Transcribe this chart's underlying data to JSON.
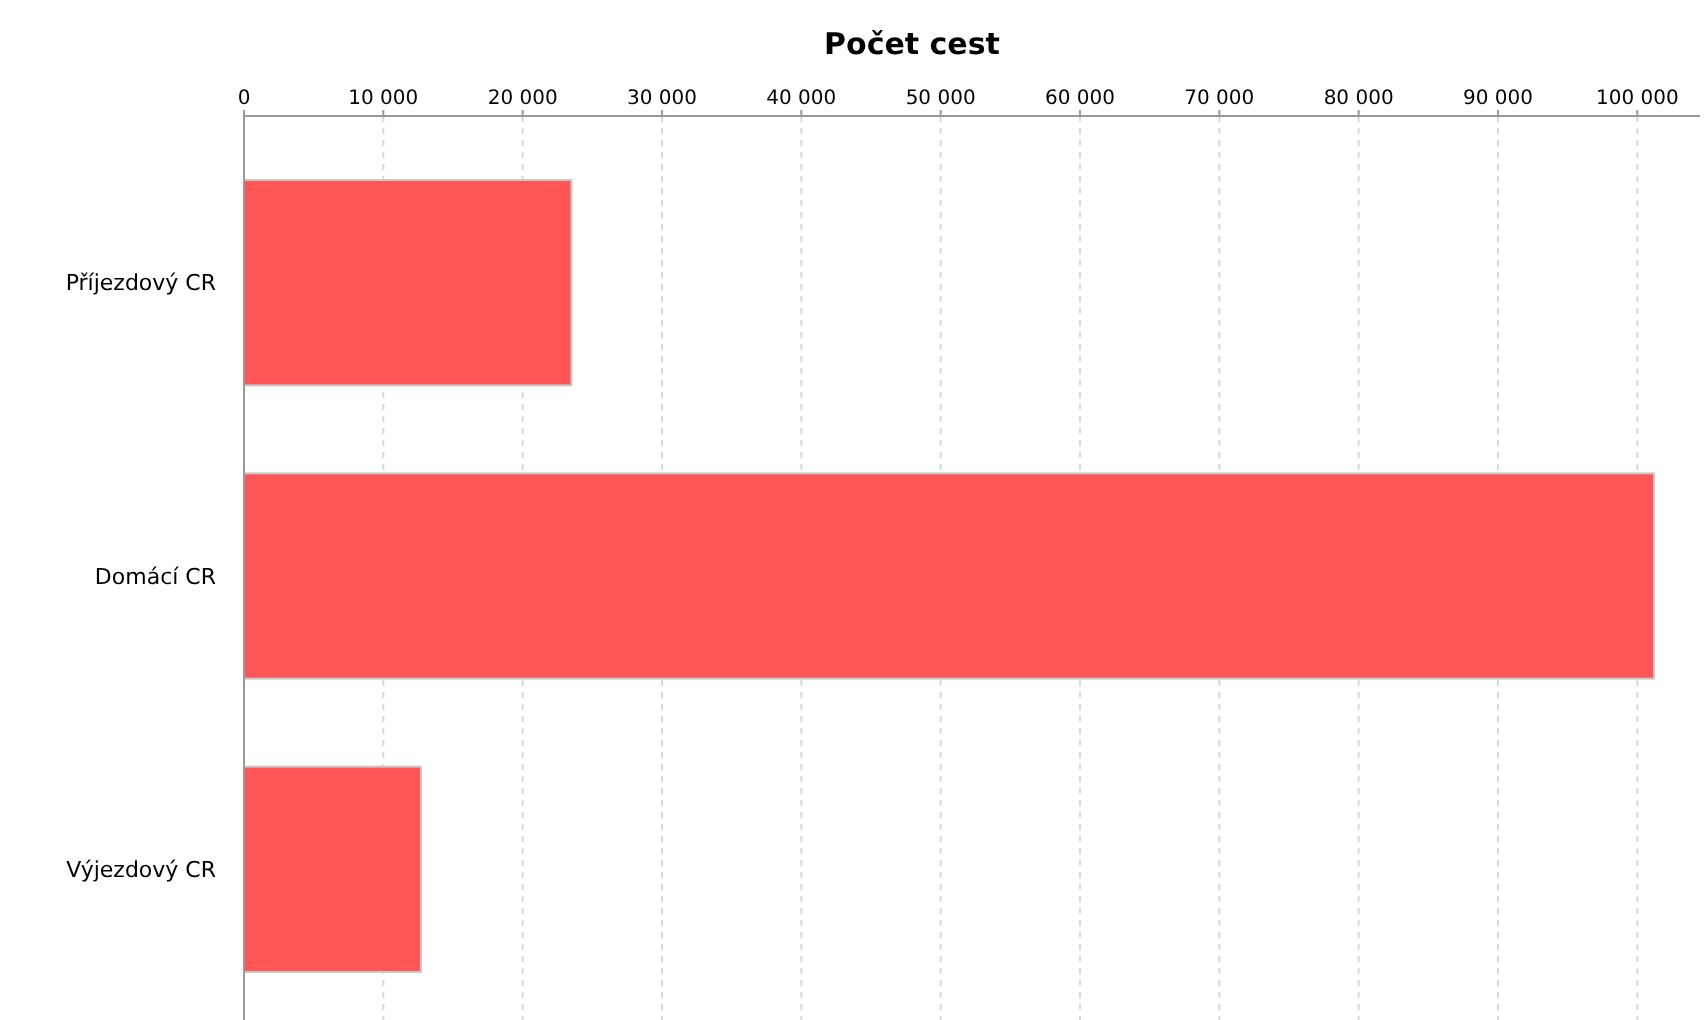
{
  "chart_data": {
    "type": "bar",
    "orientation": "horizontal",
    "title": "Počet cest",
    "categories": [
      "Příjezdový CR",
      "Domácí CR",
      "Výjezdový CR"
    ],
    "values": [
      23500,
      101200,
      12700
    ],
    "color": "#ff5555",
    "xlim": [
      0,
      104500
    ],
    "xticks": [
      0,
      {
        "value": 10000,
        "label": "10 000"
      },
      {
        "value": 20000,
        "label": "20 000"
      },
      {
        "value": 30000,
        "label": "30 000"
      },
      {
        "value": 40000,
        "label": "40 000"
      },
      {
        "value": 50000,
        "label": "50 000"
      },
      {
        "value": 60000,
        "label": "60 000"
      },
      {
        "value": 70000,
        "label": "70 000"
      },
      {
        "value": 80000,
        "label": "80 000"
      },
      {
        "value": 90000,
        "label": "90 000"
      },
      {
        "value": 100000,
        "label": "100 000"
      }
    ],
    "grid": "x"
  }
}
